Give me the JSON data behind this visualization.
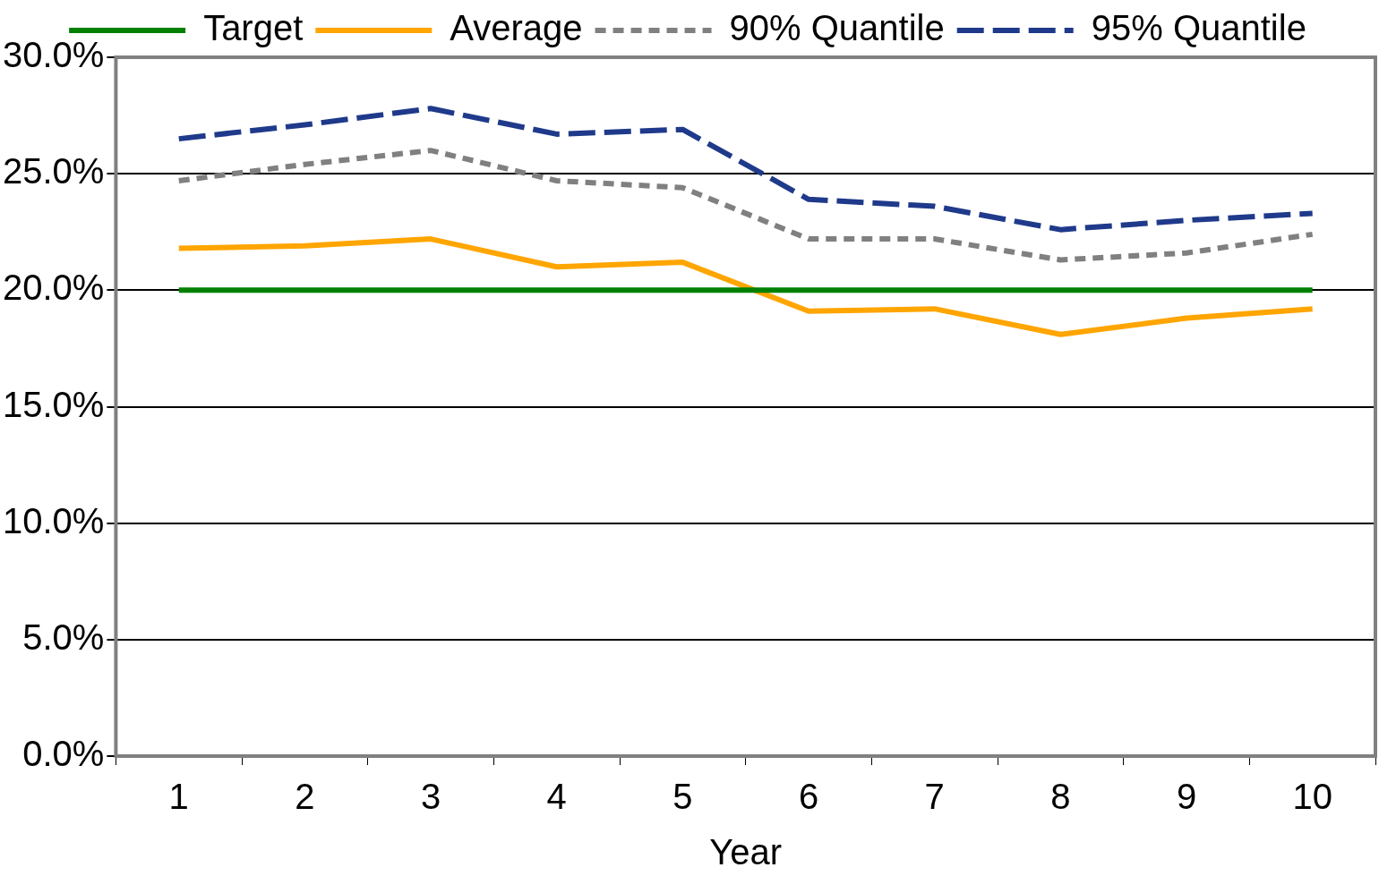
{
  "chart_data": {
    "type": "line",
    "xlabel": "Year",
    "categories": [
      "1",
      "2",
      "3",
      "4",
      "5",
      "6",
      "7",
      "8",
      "9",
      "10"
    ],
    "series": [
      {
        "name": "Target",
        "color": "#008000",
        "line_style": "solid",
        "values": [
          20,
          20,
          20,
          20,
          20,
          20,
          20,
          20,
          20,
          20
        ]
      },
      {
        "name": "Average",
        "color": "#ffa500",
        "line_style": "solid",
        "values": [
          21.8,
          21.9,
          22.2,
          21.0,
          21.2,
          19.1,
          19.2,
          18.1,
          18.8,
          19.2
        ]
      },
      {
        "name": "90% Quantile",
        "color": "#808080",
        "line_style": "dotted",
        "values": [
          24.7,
          25.4,
          26.0,
          24.7,
          24.4,
          22.2,
          22.2,
          21.3,
          21.6,
          22.4
        ]
      },
      {
        "name": "95% Quantile",
        "color": "#1f3a8a",
        "line_style": "dashed",
        "values": [
          26.5,
          27.1,
          27.8,
          26.7,
          26.9,
          23.9,
          23.6,
          22.6,
          23.0,
          23.3
        ]
      }
    ],
    "ylim": [
      0,
      30
    ],
    "yticks": [
      {
        "value": 0,
        "label": "0.0%"
      },
      {
        "value": 5,
        "label": "5.0%"
      },
      {
        "value": 10,
        "label": "10.0%"
      },
      {
        "value": 15,
        "label": "15.0%"
      },
      {
        "value": 20,
        "label": "20.0%"
      },
      {
        "value": 25,
        "label": "25.0%"
      },
      {
        "value": 30,
        "label": "30.0%"
      }
    ],
    "grid": "y",
    "legend": "top",
    "marker": "none"
  }
}
